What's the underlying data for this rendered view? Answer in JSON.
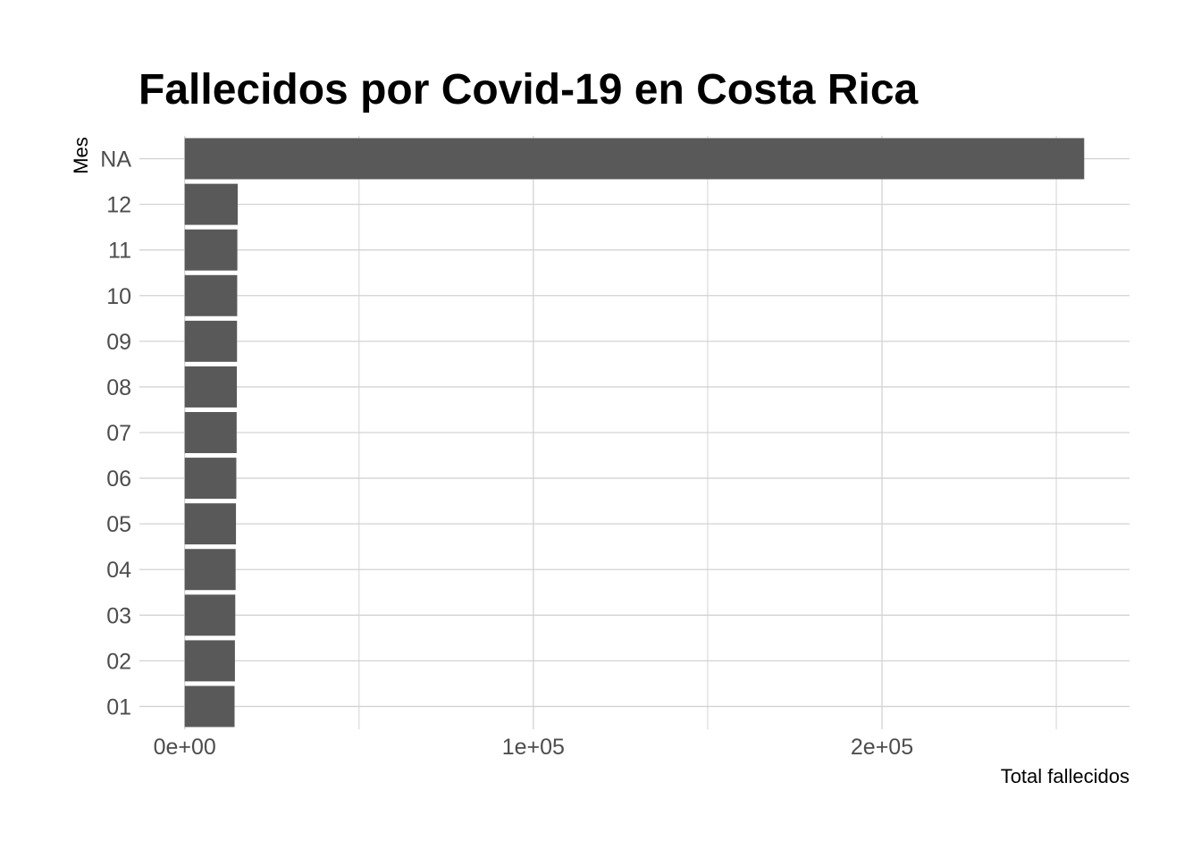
{
  "chart_data": {
    "type": "bar",
    "orientation": "horizontal",
    "title": "Fallecidos por Covid-19 en Costa Rica",
    "xlabel": "Total fallecidos",
    "ylabel": "Mes",
    "categories": [
      "01",
      "02",
      "03",
      "04",
      "05",
      "06",
      "07",
      "08",
      "09",
      "10",
      "11",
      "12",
      "NA"
    ],
    "values": [
      14300,
      14400,
      14500,
      14600,
      14700,
      14800,
      14900,
      14950,
      15000,
      15050,
      15100,
      15200,
      258000
    ],
    "xlim": [
      -13000,
      271000
    ],
    "x_ticks": [
      0,
      100000,
      200000
    ],
    "x_tick_labels": [
      "0e+00",
      "1e+05",
      "2e+05"
    ],
    "grid": true,
    "bar_color": "#595959",
    "gridline_color": "#d3d3d3"
  }
}
